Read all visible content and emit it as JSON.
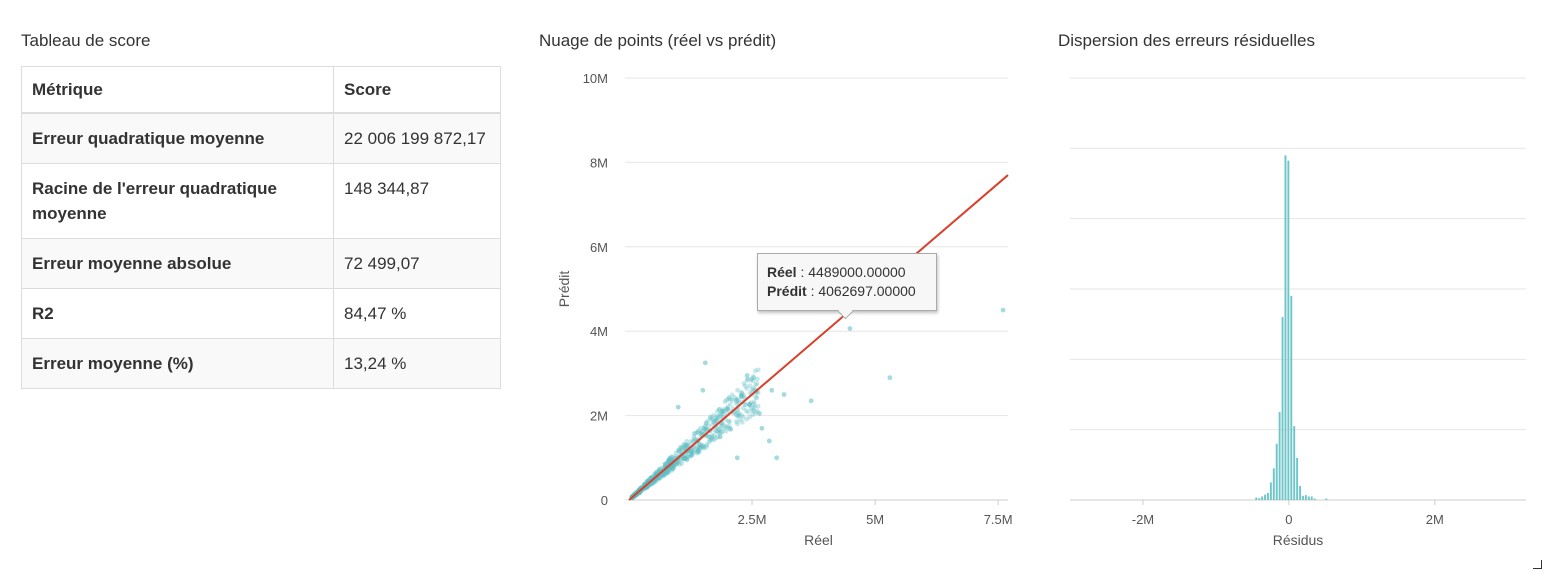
{
  "score_table": {
    "title": "Tableau de score",
    "headers": [
      "Métrique",
      "Score"
    ],
    "rows": [
      {
        "metric": "Erreur quadratique moyenne",
        "score": "22 006 199 872,17"
      },
      {
        "metric": "Racine de l'erreur quadratique moyenne",
        "score": "148 344,87"
      },
      {
        "metric": "Erreur moyenne absolue",
        "score": "72 499,07"
      },
      {
        "metric": "R2",
        "score": "84,47 %"
      },
      {
        "metric": "Erreur moyenne (%)",
        "score": "13,24 %"
      }
    ]
  },
  "colors": {
    "points": "#5bbcc2",
    "line": "#d9402b",
    "bars": "#6ec6c9",
    "grid": "#e6e6e6"
  },
  "chart_data": [
    {
      "type": "scatter",
      "title": "Nuage de points (réel vs prédit)",
      "xlabel": "Réel",
      "ylabel": "Prédit",
      "xlim": [
        0,
        7700000
      ],
      "ylim": [
        0,
        10000000
      ],
      "x_ticks": [
        {
          "value": 2500000,
          "label": "2.5M"
        },
        {
          "value": 5000000,
          "label": "5M"
        },
        {
          "value": 7500000,
          "label": "7.5M"
        }
      ],
      "y_ticks": [
        {
          "value": 0,
          "label": "0"
        },
        {
          "value": 2000000,
          "label": "2M"
        },
        {
          "value": 4000000,
          "label": "4M"
        },
        {
          "value": 6000000,
          "label": "6M"
        },
        {
          "value": 8000000,
          "label": "8M"
        },
        {
          "value": 10000000,
          "label": "10M"
        }
      ],
      "grid": true,
      "reference_line": {
        "from": [
          0,
          0
        ],
        "to": [
          7700000,
          7700000
        ]
      },
      "outliers": [
        {
          "x": 4489000,
          "y": 4062697
        },
        {
          "x": 7600000,
          "y": 4500000
        },
        {
          "x": 5300000,
          "y": 2900000
        },
        {
          "x": 3700000,
          "y": 2350000
        },
        {
          "x": 3150000,
          "y": 2500000
        },
        {
          "x": 1550000,
          "y": 3250000
        },
        {
          "x": 2400000,
          "y": 2950000
        },
        {
          "x": 2900000,
          "y": 2600000
        },
        {
          "x": 3000000,
          "y": 1000000
        },
        {
          "x": 2850000,
          "y": 1400000
        },
        {
          "x": 2200000,
          "y": 1000000
        },
        {
          "x": 1000000,
          "y": 2200000
        },
        {
          "x": 1500000,
          "y": 2600000
        },
        {
          "x": 2650000,
          "y": 2050000
        },
        {
          "x": 2700000,
          "y": 1700000
        },
        {
          "x": 2450000,
          "y": 2250000
        },
        {
          "x": 2000000,
          "y": 2150000
        }
      ],
      "cluster": {
        "count": 650,
        "x_max": 2600000,
        "spread_ratio": 0.2,
        "seed": 7
      },
      "tooltip": {
        "label_x": "Réel",
        "value_x": "4489000.00000",
        "label_y": "Prédit",
        "value_y": "4062697.00000",
        "point_x": 4489000,
        "point_y": 4062697
      }
    },
    {
      "type": "bar",
      "title": "Dispersion des erreurs résiduelles",
      "xlabel": "Résidus",
      "ylabel": "",
      "xlim": [
        -3000000,
        3250000
      ],
      "ylim": [
        0,
        1.2
      ],
      "x_ticks": [
        {
          "value": -2000000,
          "label": "-2M"
        },
        {
          "value": 0,
          "label": "0"
        },
        {
          "value": 2000000,
          "label": "2M"
        }
      ],
      "grid": true,
      "bin_width": 40000,
      "bins": [
        {
          "x": -440000,
          "y": 0.007
        },
        {
          "x": -400000,
          "y": 0.005
        },
        {
          "x": -360000,
          "y": 0.01
        },
        {
          "x": -320000,
          "y": 0.015
        },
        {
          "x": -280000,
          "y": 0.02
        },
        {
          "x": -240000,
          "y": 0.05
        },
        {
          "x": -200000,
          "y": 0.09
        },
        {
          "x": -160000,
          "y": 0.16
        },
        {
          "x": -120000,
          "y": 0.25
        },
        {
          "x": -80000,
          "y": 0.52
        },
        {
          "x": -40000,
          "y": 0.98
        },
        {
          "x": 0,
          "y": 0.965
        },
        {
          "x": 40000,
          "y": 0.58
        },
        {
          "x": 80000,
          "y": 0.21
        },
        {
          "x": 120000,
          "y": 0.12
        },
        {
          "x": 160000,
          "y": 0.04
        },
        {
          "x": 200000,
          "y": 0.012
        },
        {
          "x": 240000,
          "y": 0.014
        },
        {
          "x": 280000,
          "y": 0.01
        },
        {
          "x": 320000,
          "y": 0.01
        },
        {
          "x": 360000,
          "y": 0.004
        },
        {
          "x": 520000,
          "y": 0.004
        }
      ]
    }
  ]
}
